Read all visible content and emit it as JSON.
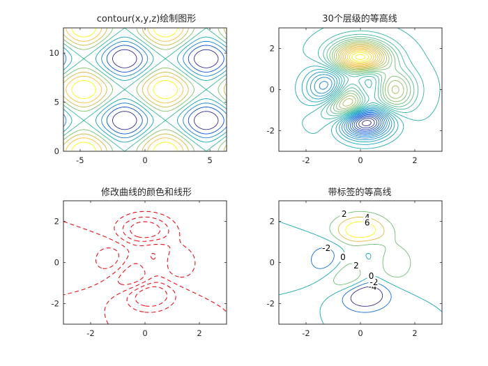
{
  "chart_data": [
    {
      "type": "contour",
      "title": "contour(x,y,z)绘制图形",
      "function": "z = sin(x) + cos(y)",
      "xlim": [
        -6.2832,
        6.2832
      ],
      "ylim": [
        0,
        12.5664
      ],
      "xticks": [
        -5,
        0,
        5
      ],
      "yticks": [
        0,
        5,
        10
      ],
      "levels": [
        -1.6,
        -1.2,
        -0.8,
        -0.4,
        0,
        0.4,
        0.8,
        1.2,
        1.6
      ],
      "colormap": "parula",
      "grid": false
    },
    {
      "type": "contour",
      "title": "30个层级的等高线",
      "function": "peaks(x,y)",
      "xlim": [
        -3,
        3
      ],
      "ylim": [
        -3,
        3
      ],
      "xticks": [
        -2,
        0,
        2
      ],
      "yticks": [
        -2,
        0,
        2
      ],
      "level_count": 30,
      "colormap": "parula",
      "grid": false
    },
    {
      "type": "contour",
      "title": "修改曲线的颜色和线形",
      "function": "peaks(x,y)",
      "xlim": [
        -3,
        3
      ],
      "ylim": [
        -3,
        3
      ],
      "xticks": [
        -2,
        0,
        2
      ],
      "yticks": [
        -2,
        0,
        2
      ],
      "levels": [
        -4,
        -2,
        0,
        2,
        4,
        6
      ],
      "line_color": "#e8121b",
      "line_style": "dashed",
      "grid": false
    },
    {
      "type": "contour",
      "title": "带标签的等高线",
      "function": "peaks(x,y)",
      "xlim": [
        -3,
        3
      ],
      "ylim": [
        -3,
        3
      ],
      "xticks": [
        -2,
        0,
        2
      ],
      "yticks": [
        -2,
        0,
        2
      ],
      "levels": [
        -4,
        -2,
        0,
        2,
        4,
        6
      ],
      "colormap": "parula",
      "show_labels": true,
      "grid": false
    }
  ]
}
